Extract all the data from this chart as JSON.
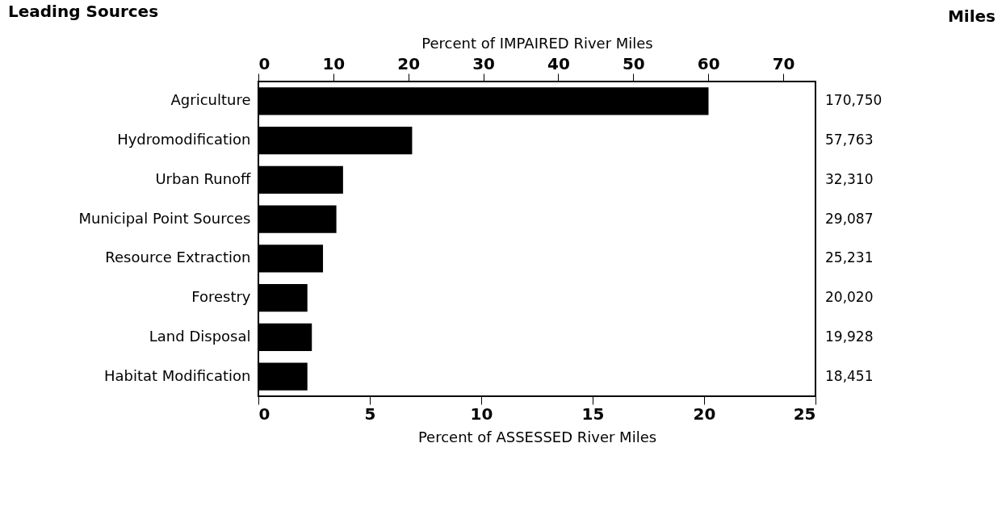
{
  "chart_data": {
    "type": "bar",
    "orientation": "horizontal",
    "title": "Leading Sources",
    "annotations": [
      "Miles",
      "170,750",
      "57,763",
      "32,310",
      "29,087",
      "25,231",
      "20,020",
      "19,928",
      "18,451"
    ],
    "categories": [
      "Agriculture",
      "Hydromodification",
      "Urban Runoff",
      "Municipal Point Sources",
      "Resource Extraction",
      "Forestry",
      "Land Disposal",
      "Habitat Modification"
    ],
    "values": [
      20.2,
      6.9,
      3.8,
      3.5,
      2.9,
      2.2,
      2.4,
      2.2
    ],
    "color": "#000000",
    "xlabel": "Percent of ASSESSED River Miles",
    "xlim": [
      0,
      25
    ],
    "xticks": [
      0,
      5,
      10,
      15,
      20,
      25
    ],
    "x2label": "Percent of IMPAIRED River Miles",
    "x2lim": [
      0,
      74.3
    ],
    "x2ticks": [
      0,
      10,
      20,
      30,
      40,
      50,
      60,
      70
    ],
    "grid": false
  }
}
